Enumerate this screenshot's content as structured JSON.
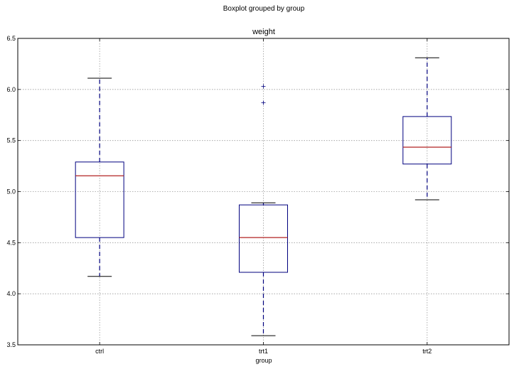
{
  "chart_data": {
    "type": "boxplot",
    "suptitle": "Boxplot grouped by group",
    "title": "weight",
    "xlabel": "group",
    "ylabel": "",
    "ylim": [
      3.5,
      6.5
    ],
    "yticks": [
      "3.5",
      "4.0",
      "4.5",
      "5.0",
      "5.5",
      "6.0",
      "6.5"
    ],
    "grid": true,
    "categories": [
      "ctrl",
      "trt1",
      "trt2"
    ],
    "boxes": [
      {
        "category": "ctrl",
        "whisker_low": 4.17,
        "q1": 4.55,
        "median": 5.155,
        "q3": 5.29,
        "whisker_high": 6.11,
        "fliers": []
      },
      {
        "category": "trt1",
        "whisker_low": 3.59,
        "q1": 4.21,
        "median": 4.55,
        "q3": 4.87,
        "whisker_high": 4.89,
        "fliers": [
          5.87,
          6.03
        ]
      },
      {
        "category": "trt2",
        "whisker_low": 4.92,
        "q1": 5.27,
        "median": 5.435,
        "q3": 5.735,
        "whisker_high": 6.31,
        "fliers": []
      }
    ],
    "colors": {
      "box": "#00007f",
      "median": "#b22222",
      "cap": "#000000",
      "grid": "#9a9a9a"
    }
  }
}
